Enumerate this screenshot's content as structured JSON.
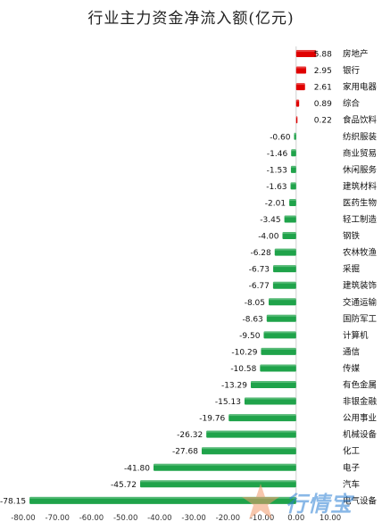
{
  "chart_data": {
    "type": "bar",
    "orientation": "horizontal",
    "title": "行业主力资金净流入额(亿元)",
    "categories": [
      "房地产",
      "银行",
      "家用电器",
      "综合",
      "食品饮料",
      "纺织服装",
      "商业贸易",
      "休闲服务",
      "建筑材料",
      "医药生物",
      "轻工制造",
      "钢铁",
      "农林牧渔",
      "采掘",
      "建筑装饰",
      "交通运输",
      "国防军工",
      "计算机",
      "通信",
      "传媒",
      "有色金属",
      "非银金融",
      "公用事业",
      "机械设备",
      "化工",
      "电子",
      "汽车",
      "电气设备"
    ],
    "values": [
      5.88,
      2.95,
      2.61,
      0.89,
      0.22,
      -0.6,
      -1.46,
      -1.53,
      -1.63,
      -2.01,
      -3.45,
      -4.0,
      -6.28,
      -6.73,
      -6.77,
      -8.05,
      -8.63,
      -9.5,
      -10.29,
      -10.58,
      -13.29,
      -15.13,
      -19.76,
      -26.32,
      -27.68,
      -41.8,
      -45.72,
      -78.15
    ],
    "value_labels": [
      "5.88",
      "2.95",
      "2.61",
      "0.89",
      "0.22",
      "-0.60",
      "-1.46",
      "-1.53",
      "-1.63",
      "-2.01",
      "-3.45",
      "-4.00",
      "-6.28",
      "-6.73",
      "-6.77",
      "-8.05",
      "-8.63",
      "-9.50",
      "-10.29",
      "-10.58",
      "-13.29",
      "-15.13",
      "-19.76",
      "-26.32",
      "-27.68",
      "-41.80",
      "-45.72",
      "-78.15"
    ],
    "xlim": [
      -80,
      10
    ],
    "x_ticks": [
      "-80.00",
      "-70.00",
      "-60.00",
      "-50.00",
      "-40.00",
      "-30.00",
      "-20.00",
      "-10.00",
      "0.00",
      "10.00"
    ],
    "x_tick_values": [
      -80,
      -70,
      -60,
      -50,
      -40,
      -30,
      -20,
      -10,
      0,
      10
    ],
    "colors": {
      "positive": "#e00000",
      "negative": "#1fa34a"
    },
    "grid": false
  },
  "watermark": {
    "text": "行情宝"
  }
}
